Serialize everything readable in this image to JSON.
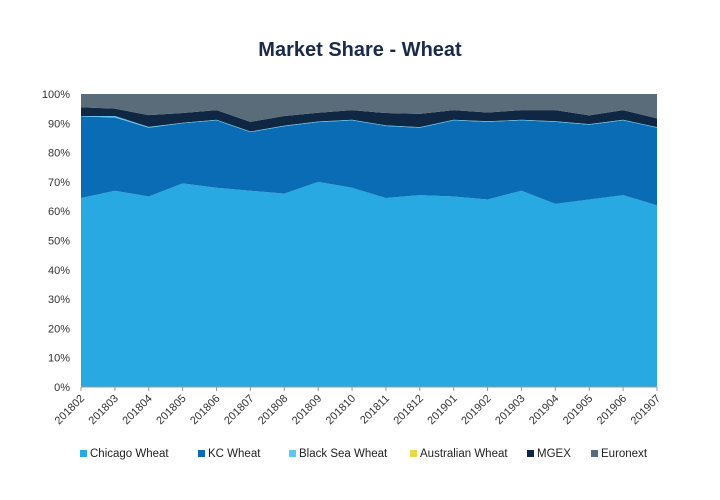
{
  "chart_data": {
    "type": "area",
    "stacked": true,
    "title": "Market Share - Wheat",
    "xlabel": "",
    "ylabel": "",
    "ylim": [
      0,
      100
    ],
    "y_tick_labels": [
      "0%",
      "10%",
      "20%",
      "30%",
      "40%",
      "50%",
      "60%",
      "70%",
      "80%",
      "90%",
      "100%"
    ],
    "categories": [
      "201802",
      "201803",
      "201804",
      "201805",
      "201806",
      "201807",
      "201808",
      "201809",
      "201810",
      "201811",
      "201812",
      "201901",
      "201902",
      "201903",
      "201904",
      "201905",
      "201906",
      "201907"
    ],
    "legend_position": "bottom",
    "grid": false,
    "series": [
      {
        "name": "Chicago Wheat",
        "color": "#29a9e1",
        "values": [
          64.5,
          67,
          65,
          69.5,
          68,
          67,
          66,
          70,
          68,
          64.5,
          65.5,
          65,
          64,
          67,
          62.5,
          64,
          65.5,
          62
        ]
      },
      {
        "name": "KC Wheat",
        "color": "#0a6cb4",
        "values": [
          27.8,
          25,
          23.5,
          20.5,
          23,
          20,
          23,
          20.4,
          23,
          24.6,
          23,
          26,
          26.5,
          24,
          28,
          25.5,
          25.5,
          26.5
        ]
      },
      {
        "name": "Black Sea Wheat",
        "color": "#5fc6f0",
        "values": [
          0.2,
          0.5,
          0.3,
          0.2,
          0.2,
          0.2,
          0.2,
          0.2,
          0.2,
          0.2,
          0.2,
          0.2,
          0.2,
          0.2,
          0.2,
          0.2,
          0.2,
          0.2
        ]
      },
      {
        "name": "Australian Wheat",
        "color": "#e6d94a",
        "values": [
          0,
          0,
          0,
          0,
          0,
          0,
          0,
          0,
          0,
          0,
          0,
          0,
          0,
          0,
          0,
          0,
          0,
          0
        ]
      },
      {
        "name": "MGEX",
        "color": "#0f2743",
        "values": [
          3,
          2.5,
          4,
          3.3,
          3.3,
          3.3,
          3.3,
          3,
          3.3,
          4.2,
          4.5,
          3.3,
          3,
          3.3,
          3.8,
          3,
          3.3,
          3
        ]
      },
      {
        "name": "Euronext",
        "color": "#5a6b7a",
        "values": [
          4.5,
          5,
          7.2,
          6.5,
          5.5,
          9.5,
          7.5,
          6.4,
          5.5,
          6.5,
          6.8,
          5.5,
          6.3,
          5.5,
          5.5,
          7.3,
          5.5,
          8.3
        ]
      }
    ]
  }
}
